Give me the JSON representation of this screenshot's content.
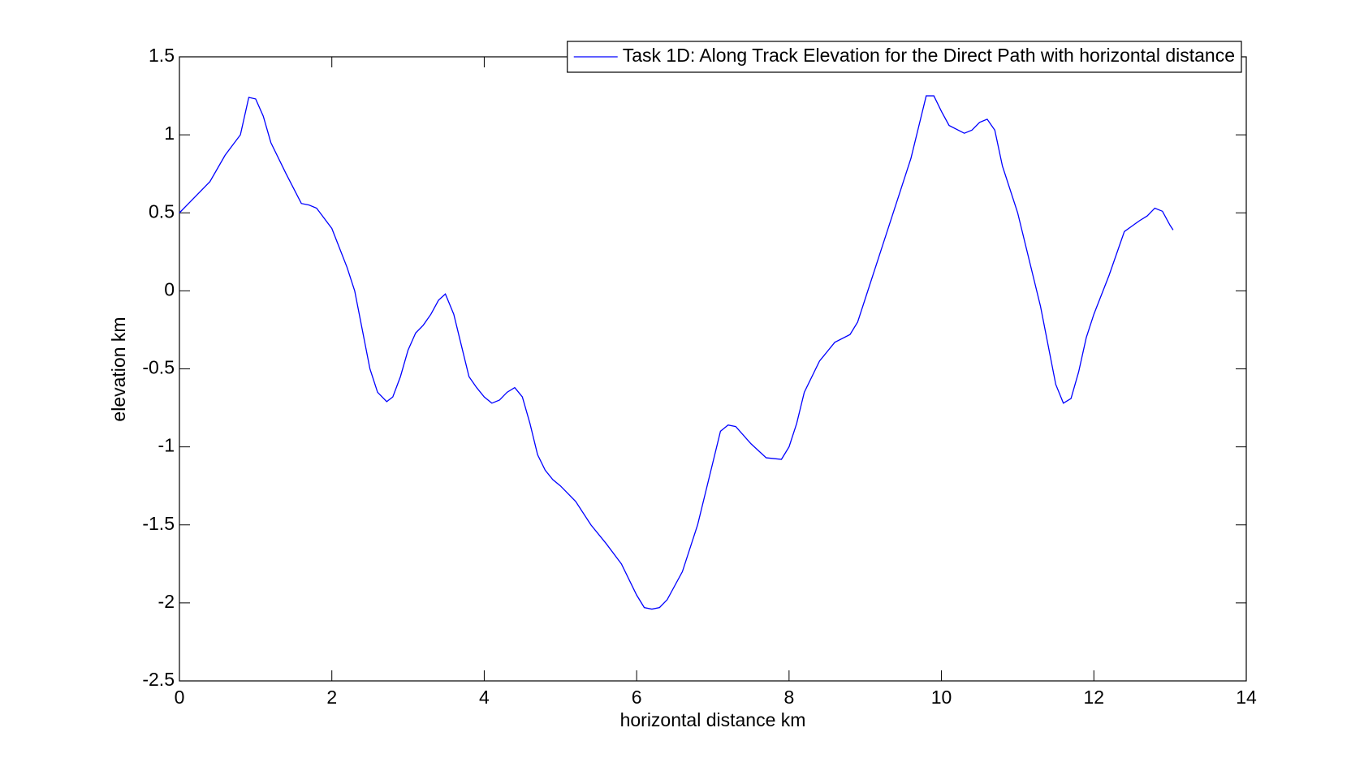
{
  "chart_data": {
    "type": "line",
    "xlabel": "horizontal distance km",
    "ylabel": "elevation km",
    "xlim": [
      0,
      14
    ],
    "xticks": [
      0,
      2,
      4,
      6,
      8,
      10,
      12,
      14
    ],
    "ylim": [
      -2.5,
      1.5
    ],
    "yticks": [
      -2.5,
      -2,
      -1.5,
      -1,
      -0.5,
      0,
      0.5,
      1,
      1.5
    ],
    "legend": "top-right",
    "x": [
      0,
      0.2,
      0.4,
      0.6,
      0.8,
      0.91,
      1.0,
      1.1,
      1.2,
      1.4,
      1.6,
      1.7,
      1.8,
      2.0,
      2.2,
      2.3,
      2.4,
      2.5,
      2.6,
      2.72,
      2.8,
      2.9,
      3.0,
      3.1,
      3.2,
      3.3,
      3.4,
      3.49,
      3.6,
      3.7,
      3.8,
      3.9,
      4.0,
      4.1,
      4.2,
      4.3,
      4.4,
      4.5,
      4.6,
      4.7,
      4.8,
      4.9,
      5.0,
      5.2,
      5.4,
      5.6,
      5.8,
      6.0,
      6.1,
      6.2,
      6.3,
      6.4,
      6.6,
      6.8,
      7.0,
      7.1,
      7.2,
      7.3,
      7.5,
      7.7,
      7.9,
      8.0,
      8.1,
      8.2,
      8.4,
      8.6,
      8.8,
      8.9,
      9.0,
      9.2,
      9.4,
      9.6,
      9.7,
      9.8,
      9.9,
      10.0,
      10.1,
      10.3,
      10.4,
      10.5,
      10.6,
      10.7,
      10.8,
      11.0,
      11.2,
      11.3,
      11.4,
      11.5,
      11.6,
      11.7,
      11.8,
      11.9,
      12.0,
      12.2,
      12.4,
      12.6,
      12.7,
      12.8,
      12.9,
      13.0,
      13.04
    ],
    "series": [
      {
        "name": "Task 1D: Along Track Elevation for the Direct Path with horizontal distance",
        "color": "#0000ff",
        "values": [
          0.5,
          0.6,
          0.7,
          0.87,
          1.0,
          1.24,
          1.23,
          1.12,
          0.95,
          0.75,
          0.56,
          0.55,
          0.53,
          0.4,
          0.15,
          0.0,
          -0.25,
          -0.5,
          -0.65,
          -0.71,
          -0.68,
          -0.55,
          -0.38,
          -0.27,
          -0.22,
          -0.15,
          -0.06,
          -0.02,
          -0.15,
          -0.35,
          -0.55,
          -0.62,
          -0.68,
          -0.72,
          -0.7,
          -0.65,
          -0.62,
          -0.68,
          -0.85,
          -1.05,
          -1.15,
          -1.21,
          -1.25,
          -1.35,
          -1.5,
          -1.62,
          -1.75,
          -1.95,
          -2.03,
          -2.04,
          -2.03,
          -1.98,
          -1.8,
          -1.5,
          -1.1,
          -0.9,
          -0.86,
          -0.87,
          -0.98,
          -1.07,
          -1.08,
          -1.0,
          -0.85,
          -0.65,
          -0.45,
          -0.33,
          -0.28,
          -0.2,
          -0.05,
          0.25,
          0.55,
          0.85,
          1.05,
          1.25,
          1.25,
          1.15,
          1.06,
          1.01,
          1.03,
          1.08,
          1.1,
          1.03,
          0.8,
          0.5,
          0.1,
          -0.1,
          -0.35,
          -0.6,
          -0.72,
          -0.69,
          -0.52,
          -0.3,
          -0.15,
          0.1,
          0.38,
          0.45,
          0.48,
          0.53,
          0.51,
          0.42,
          0.39
        ]
      }
    ]
  }
}
